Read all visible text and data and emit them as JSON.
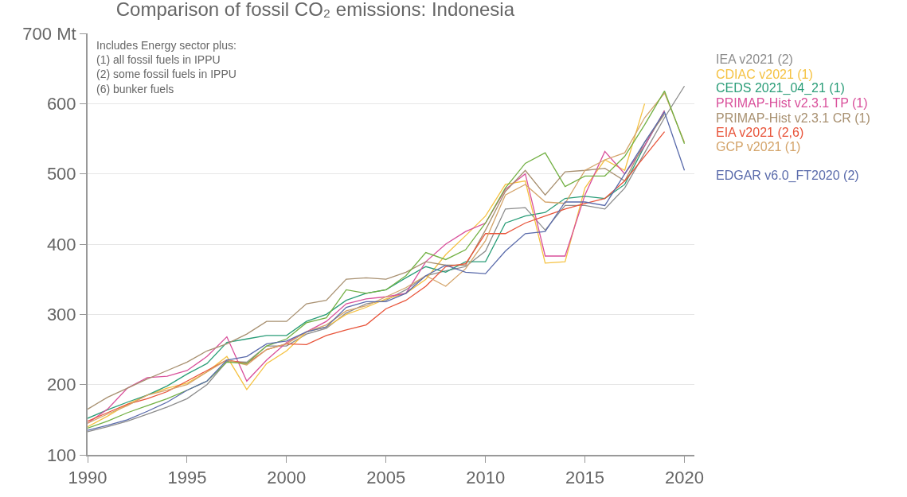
{
  "chart_data": {
    "type": "line",
    "title": "Comparison of fossil CO₂ emissions: Indonesia",
    "annotations": [
      "Includes Energy sector plus:\n(1) all fossil fuels in IPPU\n(2) some fossil fuels in IPPU\n(6) bunker fuels"
    ],
    "x": [
      1990,
      1991,
      1992,
      1993,
      1994,
      1995,
      1996,
      1997,
      1998,
      1999,
      2000,
      2001,
      2002,
      2003,
      2004,
      2005,
      2006,
      2007,
      2008,
      2009,
      2010,
      2011,
      2012,
      2013,
      2014,
      2015,
      2016,
      2017,
      2018,
      2019,
      2020
    ],
    "xlim": [
      1990,
      2020.5
    ],
    "xticks": [
      1990,
      1995,
      2000,
      2005,
      2010,
      2015,
      2020
    ],
    "ylim": [
      100,
      700
    ],
    "yticks": [
      100,
      200,
      300,
      400,
      500,
      600,
      {
        "value": 700,
        "label": "700 Mt"
      }
    ],
    "grid": "y",
    "legend": "right",
    "marker": "none",
    "line_style": "solid",
    "series": [
      {
        "name": "IEA v2021 (2)",
        "color": "#8c8c8c",
        "values": [
          133,
          140,
          148,
          158,
          168,
          180,
          200,
          233,
          232,
          255,
          255,
          272,
          280,
          302,
          315,
          320,
          335,
          355,
          362,
          368,
          390,
          450,
          452,
          420,
          455,
          455,
          450,
          480,
          530,
          580,
          625
        ]
      },
      {
        "name": "CDIAC v2021 (1)",
        "color": "#f5c242",
        "values": [
          140,
          155,
          172,
          185,
          195,
          202,
          218,
          240,
          193,
          230,
          248,
          275,
          282,
          300,
          310,
          322,
          330,
          350,
          385,
          412,
          440,
          485,
          490,
          373,
          375,
          480,
          520,
          505,
          600,
          null,
          null
        ]
      },
      {
        "name": "CEDS 2021_04_21 (1)",
        "color": "#2a9d78",
        "values": [
          152,
          164,
          175,
          185,
          198,
          215,
          230,
          260,
          265,
          270,
          270,
          290,
          300,
          320,
          330,
          335,
          352,
          368,
          360,
          375,
          375,
          430,
          440,
          445,
          465,
          468,
          465,
          485,
          540,
          590,
          null
        ]
      },
      {
        "name": "PRIMAP-Hist v2.3.1 TP (1)",
        "color": "#d9509b",
        "values": [
          145,
          165,
          195,
          210,
          212,
          220,
          240,
          268,
          205,
          235,
          260,
          275,
          290,
          315,
          322,
          325,
          330,
          375,
          400,
          418,
          430,
          478,
          500,
          383,
          383,
          470,
          532,
          500,
          540,
          590,
          null
        ]
      },
      {
        "name": "PRIMAP-Hist v2.3.1 CR (1)",
        "color": "#a89070",
        "values": [
          165,
          182,
          195,
          208,
          220,
          232,
          248,
          258,
          272,
          290,
          290,
          315,
          320,
          350,
          352,
          350,
          360,
          375,
          370,
          370,
          420,
          475,
          505,
          470,
          503,
          505,
          508,
          490,
          545,
          585,
          null
        ]
      },
      {
        "name": "EIA v2021 (2,6)",
        "color": "#e8543a",
        "values": [
          148,
          160,
          172,
          180,
          190,
          205,
          220,
          235,
          230,
          250,
          258,
          257,
          270,
          278,
          285,
          308,
          320,
          340,
          368,
          372,
          415,
          415,
          430,
          440,
          450,
          458,
          465,
          490,
          525,
          560,
          null
        ]
      },
      {
        "name": "GCP v2021 (1)",
        "color": "#d4a46a",
        "values": [
          145,
          158,
          170,
          185,
          192,
          200,
          218,
          235,
          228,
          250,
          258,
          275,
          285,
          305,
          312,
          325,
          338,
          355,
          340,
          365,
          405,
          470,
          485,
          460,
          458,
          505,
          520,
          530,
          580,
          615,
          545
        ]
      },
      {
        "color": "#72b043",
        "values": [
          138,
          148,
          160,
          170,
          180,
          192,
          205,
          232,
          230,
          255,
          265,
          288,
          295,
          335,
          330,
          335,
          355,
          388,
          378,
          392,
          430,
          480,
          515,
          530,
          482,
          497,
          497,
          525,
          570,
          618,
          543
        ]
      },
      {
        "name": "EDGAR v6.0_FT2020 (2)",
        "color": "#5a6bab",
        "values": [
          135,
          142,
          150,
          162,
          175,
          192,
          205,
          235,
          240,
          258,
          262,
          275,
          282,
          310,
          318,
          318,
          330,
          355,
          370,
          360,
          358,
          390,
          415,
          418,
          460,
          460,
          455,
          500,
          545,
          588,
          505
        ]
      }
    ]
  }
}
